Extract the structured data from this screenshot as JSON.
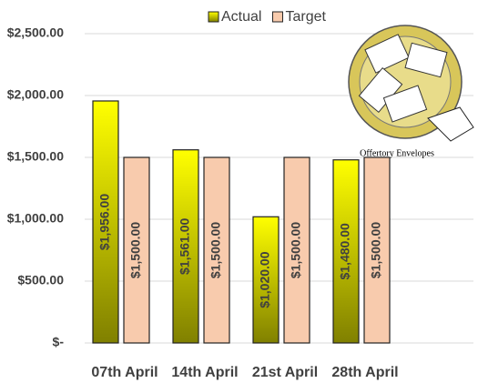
{
  "chart_data": {
    "type": "bar",
    "categories": [
      "07th April",
      "14th April",
      "21st April",
      "28th April"
    ],
    "series": [
      {
        "name": "Actual",
        "color": "#ffff00",
        "values": [
          1956,
          1561,
          1020,
          1480
        ],
        "value_labels": [
          "$1,956.00",
          "$1,561.00",
          "$1,020.00",
          "$1,480.00"
        ]
      },
      {
        "name": "Target",
        "color": "#f8cbad",
        "values": [
          1500,
          1500,
          1500,
          1500
        ],
        "value_labels": [
          "$1,500.00",
          "$1,500.00",
          "$1,500.00",
          "$1,500.00"
        ]
      }
    ],
    "ylim": [
      0,
      2500
    ],
    "yticks": [
      {
        "value": 0,
        "label": "$-"
      },
      {
        "value": 500,
        "label": "$500.00"
      },
      {
        "value": 1000,
        "label": "$1,000.00"
      },
      {
        "value": 1500,
        "label": "$1,500.00"
      },
      {
        "value": 2000,
        "label": "$2,000.00"
      },
      {
        "value": 2500,
        "label": "$2,500.00"
      }
    ],
    "grid": true,
    "legend": "top",
    "annotation": "Offertory Envelopes"
  }
}
